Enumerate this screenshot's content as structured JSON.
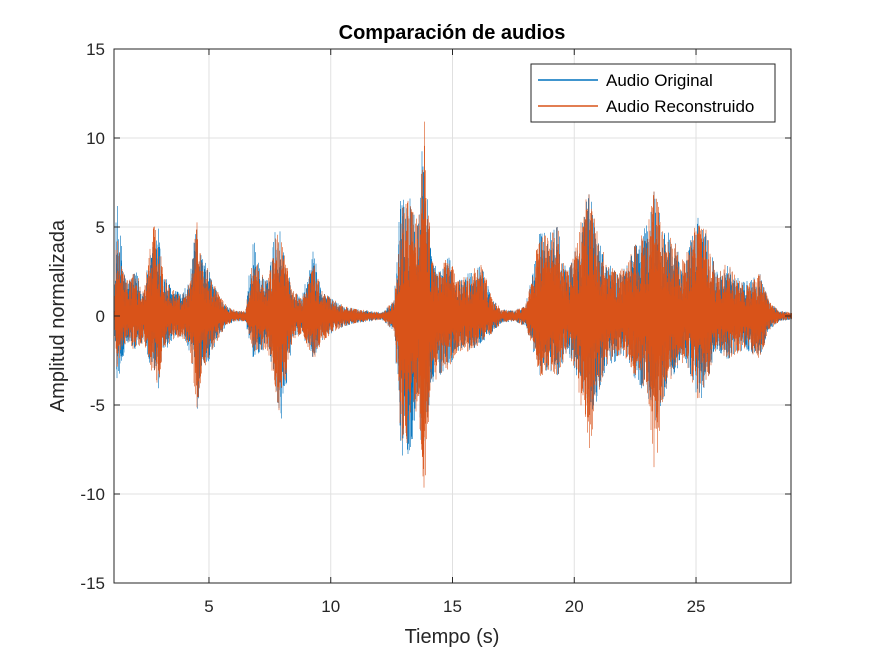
{
  "chart_data": {
    "type": "line",
    "title": "Comparación de audios",
    "xlabel": "Tiempo (s)",
    "ylabel": "Amplitud normalizada",
    "xlim": [
      1.1,
      28.9
    ],
    "ylim": [
      -15,
      15
    ],
    "xticks": [
      5,
      10,
      15,
      20,
      25
    ],
    "yticks": [
      -15,
      -10,
      -5,
      0,
      5,
      10,
      15
    ],
    "grid": true,
    "legend_position": "top-right",
    "colors": {
      "original": "#0072BD",
      "reconstruido": "#D95319"
    },
    "series": [
      {
        "name": "Audio Original",
        "color": "#0072BD",
        "envelope": [
          [
            1.1,
            0.3,
            -0.3
          ],
          [
            1.2,
            6.5,
            -3.7
          ],
          [
            1.4,
            4.0,
            -3.0
          ],
          [
            1.6,
            2.0,
            -1.5
          ],
          [
            2.0,
            2.5,
            -2.0
          ],
          [
            2.3,
            1.5,
            -1.5
          ],
          [
            2.7,
            4.3,
            -3.5
          ],
          [
            2.9,
            5.2,
            -4.5
          ],
          [
            3.1,
            2.5,
            -2.0
          ],
          [
            3.5,
            1.5,
            -1.5
          ],
          [
            3.9,
            1.3,
            -1.2
          ],
          [
            4.2,
            2.0,
            -2.0
          ],
          [
            4.5,
            5.5,
            -5.4
          ],
          [
            4.7,
            3.5,
            -3.0
          ],
          [
            5.0,
            2.5,
            -2.5
          ],
          [
            5.3,
            1.5,
            -1.5
          ],
          [
            5.7,
            0.6,
            -0.5
          ],
          [
            6.1,
            0.3,
            -0.3
          ],
          [
            6.5,
            0.3,
            -0.3
          ],
          [
            6.8,
            4.5,
            -2.5
          ],
          [
            7.1,
            2.5,
            -2.0
          ],
          [
            7.4,
            2.0,
            -2.0
          ],
          [
            7.7,
            5.0,
            -4.0
          ],
          [
            7.9,
            5.0,
            -6.5
          ],
          [
            8.1,
            3.5,
            -4.5
          ],
          [
            8.4,
            1.5,
            -1.5
          ],
          [
            8.8,
            1.0,
            -1.0
          ],
          [
            9.3,
            3.8,
            -2.5
          ],
          [
            9.6,
            1.5,
            -1.5
          ],
          [
            10.0,
            1.0,
            -1.0
          ],
          [
            10.5,
            0.6,
            -0.6
          ],
          [
            11.0,
            0.4,
            -0.4
          ],
          [
            11.6,
            0.3,
            -0.3
          ],
          [
            12.1,
            0.2,
            -0.2
          ],
          [
            12.6,
            0.9,
            -0.9
          ],
          [
            12.9,
            7.9,
            -8.5
          ],
          [
            13.3,
            7.0,
            -7.5
          ],
          [
            13.6,
            6.0,
            -5.0
          ],
          [
            13.8,
            11.0,
            -9.0
          ],
          [
            14.1,
            3.5,
            -4.0
          ],
          [
            14.4,
            2.5,
            -3.5
          ],
          [
            14.8,
            3.5,
            -3.0
          ],
          [
            15.2,
            2.0,
            -2.0
          ],
          [
            15.7,
            2.5,
            -2.0
          ],
          [
            16.2,
            3.0,
            -1.5
          ],
          [
            16.6,
            1.0,
            -1.0
          ],
          [
            17.0,
            0.4,
            -0.4
          ],
          [
            17.5,
            0.3,
            -0.3
          ],
          [
            18.0,
            0.6,
            -0.6
          ],
          [
            18.6,
            5.0,
            -3.5
          ],
          [
            18.9,
            5.0,
            -3.0
          ],
          [
            19.3,
            5.2,
            -3.5
          ],
          [
            19.7,
            2.5,
            -2.0
          ],
          [
            20.0,
            3.5,
            -3.0
          ],
          [
            20.6,
            7.5,
            -6.0
          ],
          [
            20.9,
            5.0,
            -5.0
          ],
          [
            21.3,
            3.0,
            -3.0
          ],
          [
            21.8,
            2.5,
            -2.5
          ],
          [
            22.2,
            3.0,
            -2.5
          ],
          [
            22.6,
            4.5,
            -4.0
          ],
          [
            23.0,
            5.2,
            -4.5
          ],
          [
            23.3,
            7.4,
            -6.5
          ],
          [
            23.6,
            5.0,
            -5.0
          ],
          [
            24.0,
            4.5,
            -3.5
          ],
          [
            24.5,
            3.0,
            -2.5
          ],
          [
            24.9,
            5.0,
            -4.0
          ],
          [
            25.1,
            6.0,
            -5.0
          ],
          [
            25.4,
            5.0,
            -4.0
          ],
          [
            25.8,
            2.5,
            -2.0
          ],
          [
            26.3,
            3.0,
            -2.5
          ],
          [
            26.8,
            2.0,
            -2.0
          ],
          [
            27.2,
            2.0,
            -2.0
          ],
          [
            27.6,
            2.5,
            -2.5
          ],
          [
            28.0,
            0.8,
            -0.8
          ],
          [
            28.4,
            0.3,
            -0.3
          ],
          [
            28.9,
            0.2,
            -0.2
          ]
        ]
      },
      {
        "name": "Audio Reconstruido",
        "color": "#D95319",
        "envelope": [
          [
            1.1,
            0.3,
            -0.3
          ],
          [
            1.2,
            4.5,
            -3.0
          ],
          [
            1.4,
            3.0,
            -2.0
          ],
          [
            1.6,
            2.0,
            -1.5
          ],
          [
            2.0,
            2.5,
            -2.0
          ],
          [
            2.3,
            1.5,
            -1.5
          ],
          [
            2.7,
            5.2,
            -3.5
          ],
          [
            2.9,
            5.0,
            -4.0
          ],
          [
            3.1,
            2.5,
            -2.0
          ],
          [
            3.5,
            1.5,
            -1.5
          ],
          [
            3.9,
            1.3,
            -1.2
          ],
          [
            4.2,
            2.0,
            -2.0
          ],
          [
            4.5,
            5.5,
            -5.4
          ],
          [
            4.7,
            3.5,
            -3.0
          ],
          [
            5.0,
            2.5,
            -2.5
          ],
          [
            5.3,
            1.5,
            -1.5
          ],
          [
            5.7,
            0.6,
            -0.5
          ],
          [
            6.1,
            0.3,
            -0.3
          ],
          [
            6.5,
            0.3,
            -0.3
          ],
          [
            6.8,
            3.5,
            -2.0
          ],
          [
            7.1,
            2.5,
            -2.0
          ],
          [
            7.4,
            2.0,
            -2.0
          ],
          [
            7.7,
            5.0,
            -4.0
          ],
          [
            7.9,
            5.2,
            -6.0
          ],
          [
            8.1,
            3.5,
            -4.0
          ],
          [
            8.4,
            1.5,
            -1.5
          ],
          [
            8.8,
            1.0,
            -1.0
          ],
          [
            9.3,
            3.0,
            -2.5
          ],
          [
            9.6,
            1.5,
            -1.5
          ],
          [
            10.0,
            1.0,
            -1.0
          ],
          [
            10.5,
            0.6,
            -0.6
          ],
          [
            11.0,
            0.4,
            -0.4
          ],
          [
            11.6,
            0.3,
            -0.3
          ],
          [
            12.1,
            0.2,
            -0.2
          ],
          [
            12.6,
            0.9,
            -0.9
          ],
          [
            12.9,
            6.5,
            -7.5
          ],
          [
            13.3,
            6.5,
            -7.0
          ],
          [
            13.6,
            5.0,
            -5.0
          ],
          [
            13.8,
            12.1,
            -11.0
          ],
          [
            14.1,
            3.5,
            -4.0
          ],
          [
            14.4,
            2.5,
            -3.5
          ],
          [
            14.8,
            3.5,
            -3.0
          ],
          [
            15.2,
            2.0,
            -2.0
          ],
          [
            15.7,
            2.5,
            -2.0
          ],
          [
            16.2,
            3.0,
            -1.5
          ],
          [
            16.6,
            1.0,
            -1.0
          ],
          [
            17.0,
            0.4,
            -0.4
          ],
          [
            17.5,
            0.3,
            -0.3
          ],
          [
            18.0,
            0.6,
            -0.6
          ],
          [
            18.6,
            5.0,
            -3.5
          ],
          [
            18.9,
            4.5,
            -3.0
          ],
          [
            19.3,
            5.0,
            -3.5
          ],
          [
            19.7,
            2.5,
            -2.0
          ],
          [
            20.0,
            3.5,
            -3.0
          ],
          [
            20.6,
            7.5,
            -7.5
          ],
          [
            20.9,
            5.0,
            -5.0
          ],
          [
            21.3,
            3.0,
            -3.0
          ],
          [
            21.8,
            2.5,
            -2.5
          ],
          [
            22.2,
            3.0,
            -2.5
          ],
          [
            22.6,
            4.5,
            -4.0
          ],
          [
            23.0,
            5.0,
            -4.5
          ],
          [
            23.3,
            7.6,
            -9.0
          ],
          [
            23.6,
            5.0,
            -5.0
          ],
          [
            24.0,
            4.5,
            -3.5
          ],
          [
            24.5,
            3.0,
            -2.5
          ],
          [
            24.9,
            5.0,
            -4.0
          ],
          [
            25.1,
            6.0,
            -5.0
          ],
          [
            25.4,
            5.0,
            -4.0
          ],
          [
            25.8,
            2.5,
            -2.0
          ],
          [
            26.3,
            3.0,
            -2.5
          ],
          [
            26.8,
            2.0,
            -2.0
          ],
          [
            27.2,
            2.0,
            -2.0
          ],
          [
            27.6,
            2.5,
            -2.5
          ],
          [
            28.0,
            0.8,
            -0.8
          ],
          [
            28.4,
            0.3,
            -0.3
          ],
          [
            28.9,
            0.2,
            -0.2
          ]
        ]
      }
    ]
  }
}
